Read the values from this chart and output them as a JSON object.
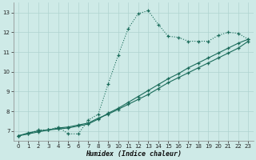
{
  "xlabel": "Humidex (Indice chaleur)",
  "background_color": "#ceeae7",
  "grid_color": "#afd4d0",
  "line_color": "#1a6b5a",
  "xlim": [
    -0.5,
    23.5
  ],
  "ylim": [
    6.5,
    13.5
  ],
  "yticks": [
    7,
    8,
    9,
    10,
    11,
    12,
    13
  ],
  "xticks": [
    0,
    1,
    2,
    3,
    4,
    5,
    6,
    7,
    8,
    9,
    10,
    11,
    12,
    13,
    14,
    15,
    16,
    17,
    18,
    19,
    20,
    21,
    22,
    23
  ],
  "curve1_x": [
    0,
    1,
    2,
    3,
    4,
    5,
    6,
    7,
    8,
    9,
    10,
    11,
    12,
    13,
    14,
    15,
    16,
    17,
    18,
    19,
    20,
    21,
    22,
    23
  ],
  "curve1_y": [
    6.75,
    6.85,
    7.05,
    7.05,
    7.2,
    6.85,
    6.85,
    7.55,
    7.85,
    9.4,
    10.85,
    12.2,
    12.95,
    13.1,
    12.4,
    11.8,
    11.75,
    11.55,
    11.55,
    11.55,
    11.85,
    12.0,
    11.95,
    11.65
  ],
  "curve2_x": [
    0,
    1,
    2,
    3,
    4,
    5,
    6,
    7,
    8,
    9,
    10,
    11,
    12,
    13,
    14,
    15,
    16,
    17,
    18,
    19,
    20,
    21,
    22,
    23
  ],
  "curve2_y": [
    6.75,
    6.85,
    6.95,
    7.05,
    7.15,
    7.2,
    7.3,
    7.4,
    7.65,
    7.85,
    8.1,
    8.35,
    8.6,
    8.85,
    9.15,
    9.45,
    9.7,
    9.95,
    10.2,
    10.45,
    10.7,
    10.95,
    11.2,
    11.55
  ],
  "curve3_x": [
    0,
    1,
    2,
    3,
    4,
    5,
    6,
    7,
    8,
    9,
    10,
    11,
    12,
    13,
    14,
    15,
    16,
    17,
    18,
    19,
    20,
    21,
    22,
    23
  ],
  "curve3_y": [
    6.75,
    6.9,
    7.0,
    7.05,
    7.1,
    7.15,
    7.25,
    7.35,
    7.6,
    7.9,
    8.15,
    8.45,
    8.75,
    9.05,
    9.35,
    9.65,
    9.9,
    10.2,
    10.45,
    10.7,
    10.95,
    11.2,
    11.45,
    11.65
  ]
}
